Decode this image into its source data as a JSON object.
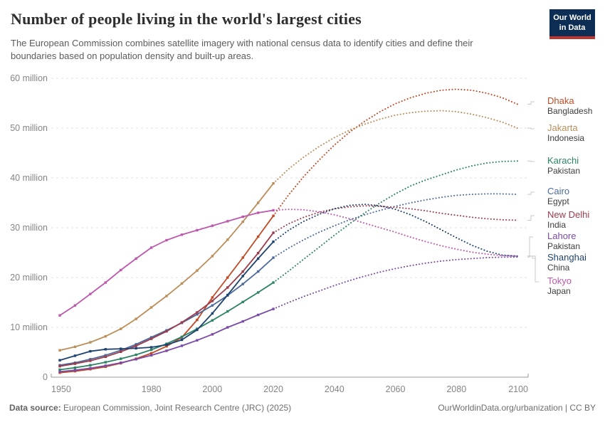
{
  "header": {
    "title": "Number of people living in the world's largest cities",
    "subtitle": "The European Commission combines satellite imagery with national census data to identify cities and define their boundaries based on population density and built-up areas.",
    "logo": {
      "line1": "Our World",
      "line2": "in Data",
      "bg_color": "#0d2e54",
      "accent_color": "#c0362c"
    }
  },
  "chart_data": {
    "type": "line",
    "unit": "million people",
    "x": [
      1950,
      1955,
      1960,
      1965,
      1970,
      1975,
      1980,
      1985,
      1990,
      1995,
      2000,
      2005,
      2010,
      2015,
      2020,
      2025,
      2030,
      2035,
      2040,
      2045,
      2050,
      2055,
      2060,
      2065,
      2070,
      2075,
      2080,
      2085,
      2090,
      2095,
      2100
    ],
    "projection_start_year": 2020,
    "x_ticks": [
      1950,
      1980,
      2000,
      2020,
      2040,
      2060,
      2080,
      2100
    ],
    "y_ticks": [
      {
        "value": 0,
        "label": "0"
      },
      {
        "value": 10,
        "label": "10 million"
      },
      {
        "value": 20,
        "label": "20 million"
      },
      {
        "value": 30,
        "label": "30 million"
      },
      {
        "value": 40,
        "label": "40 million"
      },
      {
        "value": 50,
        "label": "50 million"
      },
      {
        "value": 60,
        "label": "60 million"
      }
    ],
    "ylim": [
      0,
      62
    ],
    "xlim": [
      1948,
      2103
    ],
    "grid": "dashed-horizontal",
    "legend_position": "right",
    "series": [
      {
        "name": "Dhaka",
        "country": "Bangladesh",
        "color": "#bf4b26",
        "values": [
          0.9,
          1.2,
          1.6,
          2.1,
          2.8,
          3.7,
          4.8,
          6.2,
          8.0,
          11.5,
          16.0,
          20.0,
          24.0,
          28.2,
          32.4,
          36.6,
          40.3,
          43.6,
          46.6,
          49.2,
          51.4,
          53.3,
          54.9,
          56.1,
          57.0,
          57.6,
          57.8,
          57.6,
          57.0,
          56.1,
          54.8
        ]
      },
      {
        "name": "Jakarta",
        "country": "Indonesia",
        "color": "#bc8e5a",
        "values": [
          5.4,
          6.1,
          7.0,
          8.2,
          9.7,
          11.7,
          14.0,
          16.3,
          18.8,
          21.4,
          24.3,
          27.6,
          31.2,
          35.0,
          38.9,
          41.8,
          44.2,
          46.3,
          48.1,
          49.6,
          50.8,
          51.8,
          52.6,
          53.1,
          53.4,
          53.5,
          53.3,
          52.8,
          52.1,
          51.2,
          50.0
        ]
      },
      {
        "name": "Karachi",
        "country": "Pakistan",
        "color": "#2c8465",
        "values": [
          1.5,
          1.9,
          2.4,
          3.0,
          3.7,
          4.5,
          5.5,
          6.7,
          8.1,
          9.7,
          11.4,
          13.2,
          15.1,
          17.0,
          19.0,
          21.3,
          23.7,
          26.1,
          28.5,
          30.8,
          33.0,
          35.0,
          36.8,
          38.4,
          39.6,
          40.6,
          41.6,
          42.4,
          43.0,
          43.3,
          43.4
        ]
      },
      {
        "name": "Cairo",
        "country": "Egypt",
        "color": "#4c6a9c",
        "values": [
          2.4,
          2.9,
          3.6,
          4.4,
          5.4,
          6.6,
          8.0,
          9.4,
          10.9,
          12.6,
          14.4,
          16.4,
          18.7,
          21.2,
          24.0,
          25.9,
          27.6,
          29.1,
          30.4,
          31.6,
          32.6,
          33.5,
          34.3,
          35.0,
          35.6,
          36.1,
          36.5,
          36.7,
          36.8,
          36.8,
          36.7
        ]
      },
      {
        "name": "New Delhi",
        "country": "India",
        "color": "#9c3c4b",
        "values": [
          2.2,
          2.7,
          3.3,
          4.1,
          5.1,
          6.3,
          7.7,
          9.2,
          11.0,
          13.0,
          15.3,
          18.0,
          21.2,
          24.9,
          29.0,
          30.8,
          32.1,
          33.1,
          33.8,
          34.2,
          34.4,
          34.3,
          34.1,
          33.8,
          33.4,
          32.9,
          32.5,
          32.1,
          31.8,
          31.6,
          31.5
        ]
      },
      {
        "name": "Lahore",
        "country": "Pakistan",
        "color": "#7a4aa5",
        "values": [
          1.1,
          1.4,
          1.8,
          2.3,
          2.9,
          3.6,
          4.4,
          5.3,
          6.3,
          7.4,
          8.6,
          10.0,
          11.2,
          12.5,
          13.7,
          15.0,
          16.2,
          17.3,
          18.4,
          19.4,
          20.3,
          21.1,
          21.8,
          22.4,
          22.9,
          23.3,
          23.6,
          23.8,
          24.0,
          24.1,
          24.1
        ]
      },
      {
        "name": "Shanghai",
        "country": "China",
        "color": "#1e4370",
        "values": [
          3.4,
          4.3,
          5.2,
          5.6,
          5.7,
          5.8,
          6.0,
          6.5,
          7.5,
          9.5,
          12.8,
          16.5,
          20.3,
          23.8,
          27.2,
          29.5,
          31.3,
          32.7,
          33.8,
          34.5,
          34.7,
          34.4,
          33.7,
          32.6,
          31.2,
          29.6,
          28.0,
          26.5,
          25.3,
          24.5,
          24.3
        ]
      },
      {
        "name": "Tokyo",
        "country": "Japan",
        "color": "#bd59ad",
        "values": [
          12.4,
          14.4,
          16.7,
          19.0,
          21.5,
          23.8,
          26.0,
          27.5,
          28.6,
          29.5,
          30.4,
          31.3,
          32.2,
          33.0,
          33.5,
          33.7,
          33.6,
          33.2,
          32.6,
          31.8,
          30.9,
          30.0,
          29.1,
          28.1,
          27.2,
          26.4,
          25.7,
          25.1,
          24.7,
          24.4,
          24.3
        ]
      }
    ]
  },
  "footer": {
    "source_label": "Data source:",
    "source_value": " European Commission, Joint Research Centre (JRC) (2025)",
    "credit": "OurWorldinData.org/urbanization | CC BY"
  }
}
